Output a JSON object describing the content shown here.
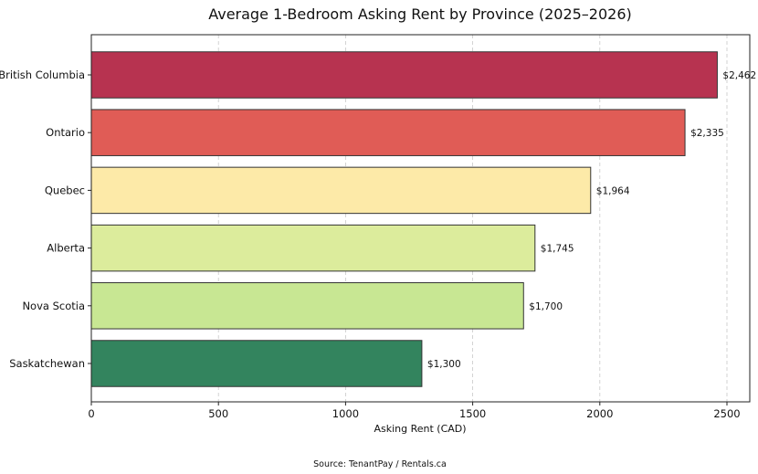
{
  "chart_data": {
    "type": "bar",
    "orientation": "horizontal",
    "title": "Average 1-Bedroom Asking Rent by Province (2025–2026)",
    "xlabel": "Asking Rent (CAD)",
    "ylabel": "",
    "xlim": [
      0,
      2600
    ],
    "xticks": [
      0,
      500,
      1000,
      1500,
      2000,
      2500
    ],
    "grid": "vertical dashed",
    "categories": [
      "British Columbia",
      "Ontario",
      "Quebec",
      "Alberta",
      "Nova Scotia",
      "Saskatchewan"
    ],
    "values": [
      2462,
      2335,
      1964,
      1745,
      1700,
      1300
    ],
    "value_labels": [
      "$2,462",
      "$2,335",
      "$1,964",
      "$1,745",
      "$1,700",
      "$1,300"
    ],
    "colors": [
      "#b73350",
      "#e05c56",
      "#fdeaa8",
      "#dcec9c",
      "#c8e793",
      "#33845e"
    ],
    "source": "Source: TenantPay / Rentals.ca"
  }
}
